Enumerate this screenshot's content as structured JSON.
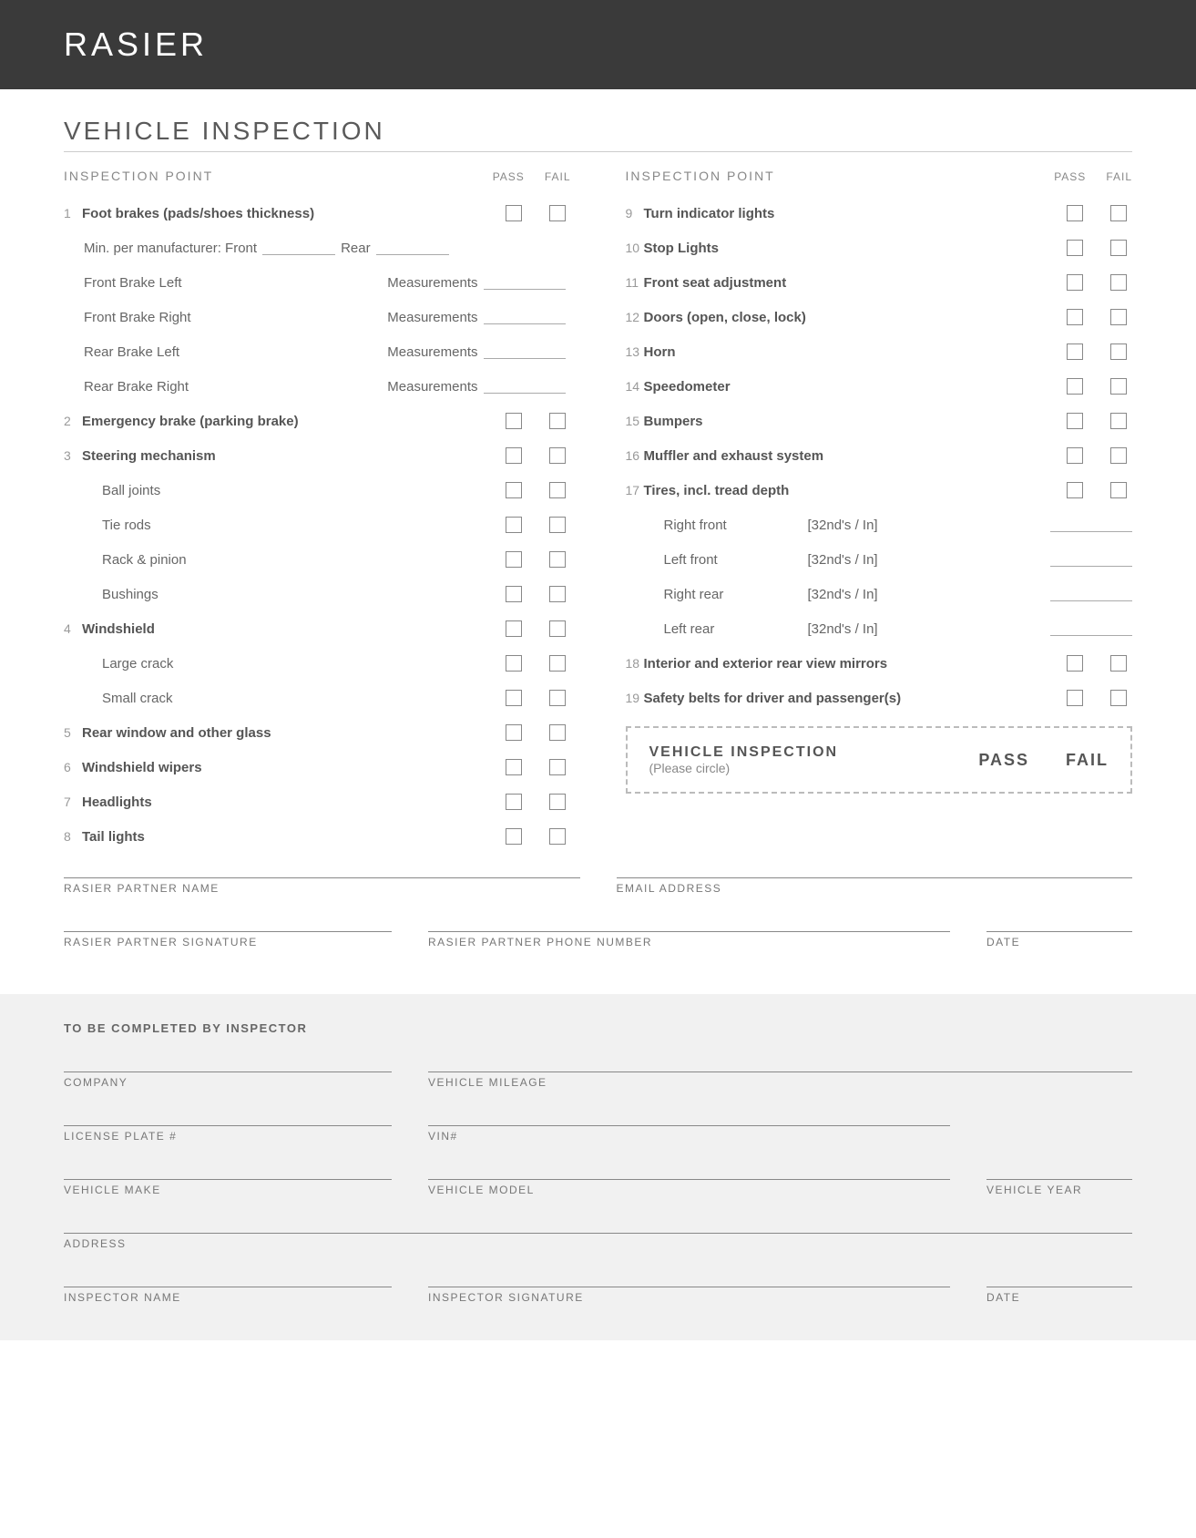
{
  "header": {
    "brand": "RASIER"
  },
  "title": "VEHICLE INSPECTION",
  "column_header": {
    "label": "INSPECTION POINT",
    "pass": "PASS",
    "fail": "FAIL"
  },
  "left_items": [
    {
      "num": "1",
      "label": "Foot brakes (pads/shoes thickness)",
      "bold": true,
      "checkboxes": true
    },
    {
      "min_line": true,
      "prefix": "Min. per manufacturer:  Front",
      "mid": "Rear"
    },
    {
      "meas": true,
      "name": "Front Brake Left",
      "m": "Measurements"
    },
    {
      "meas": true,
      "name": "Front Brake Right",
      "m": "Measurements"
    },
    {
      "meas": true,
      "name": "Rear Brake Left",
      "m": "Measurements"
    },
    {
      "meas": true,
      "name": "Rear Brake Right",
      "m": "Measurements"
    },
    {
      "num": "2",
      "label": "Emergency brake (parking brake)",
      "bold": true,
      "checkboxes": true
    },
    {
      "num": "3",
      "label": "Steering mechanism",
      "bold": true,
      "checkboxes": true
    },
    {
      "sub": true,
      "label": "Ball joints",
      "checkboxes": true
    },
    {
      "sub": true,
      "label": "Tie rods",
      "checkboxes": true
    },
    {
      "sub": true,
      "label": "Rack & pinion",
      "checkboxes": true
    },
    {
      "sub": true,
      "label": "Bushings",
      "checkboxes": true
    },
    {
      "num": "4",
      "label": "Windshield",
      "bold": true,
      "checkboxes": true
    },
    {
      "sub": true,
      "label": "Large crack",
      "checkboxes": true
    },
    {
      "sub": true,
      "label": "Small crack",
      "checkboxes": true
    },
    {
      "num": "5",
      "label": "Rear window and other glass",
      "bold": true,
      "checkboxes": true
    },
    {
      "num": "6",
      "label": "Windshield wipers",
      "bold": true,
      "checkboxes": true
    },
    {
      "num": "7",
      "label": "Headlights",
      "bold": true,
      "checkboxes": true
    },
    {
      "num": "8",
      "label": "Tail lights",
      "bold": true,
      "checkboxes": true
    }
  ],
  "right_items": [
    {
      "num": "9",
      "label": "Turn indicator lights",
      "bold": true,
      "checkboxes": true
    },
    {
      "num": "10",
      "label": "Stop Lights",
      "bold": true,
      "checkboxes": true
    },
    {
      "num": "11",
      "label": "Front seat adjustment",
      "bold": true,
      "checkboxes": true
    },
    {
      "num": "12",
      "label": "Doors (open, close, lock)",
      "bold": true,
      "checkboxes": true
    },
    {
      "num": "13",
      "label": "Horn",
      "bold": true,
      "checkboxes": true
    },
    {
      "num": "14",
      "label": "Speedometer",
      "bold": true,
      "checkboxes": true
    },
    {
      "num": "15",
      "label": "Bumpers",
      "bold": true,
      "checkboxes": true
    },
    {
      "num": "16",
      "label": "Muffler and exhaust system",
      "bold": true,
      "checkboxes": true
    },
    {
      "num": "17",
      "label": "Tires, incl. tread depth",
      "bold": true,
      "checkboxes": true
    },
    {
      "tire": true,
      "name": "Right front",
      "unit": "[32nd's / In]"
    },
    {
      "tire": true,
      "name": "Left front",
      "unit": "[32nd's / In]"
    },
    {
      "tire": true,
      "name": "Right rear",
      "unit": "[32nd's / In]"
    },
    {
      "tire": true,
      "name": "Left rear",
      "unit": "[32nd's / In]"
    },
    {
      "num": "18",
      "label": "Interior and exterior rear view mirrors",
      "bold": true,
      "checkboxes": true
    },
    {
      "num": "19",
      "label": "Safety belts for driver and passenger(s)",
      "bold": true,
      "checkboxes": true
    }
  ],
  "result_box": {
    "title": "VEHICLE INSPECTION",
    "sub": "(Please circle)",
    "pass": "PASS",
    "fail": "FAIL"
  },
  "sig_partner": {
    "name": "RASIER PARTNER NAME",
    "email": "EMAIL ADDRESS",
    "signature": "RASIER PARTNER SIGNATURE",
    "phone": "RASIER PARTNER PHONE NUMBER",
    "date": "DATE"
  },
  "inspector": {
    "heading": "TO BE COMPLETED BY INSPECTOR",
    "company": "COMPANY",
    "mileage": "VEHICLE MILEAGE",
    "plate": "LICENSE PLATE #",
    "vin": "VIN#",
    "make": "VEHICLE MAKE",
    "model": "VEHICLE MODEL",
    "year": "VEHICLE YEAR",
    "address": "ADDRESS",
    "iname": "INSPECTOR NAME",
    "isig": "INSPECTOR SIGNATURE",
    "date": "DATE"
  }
}
